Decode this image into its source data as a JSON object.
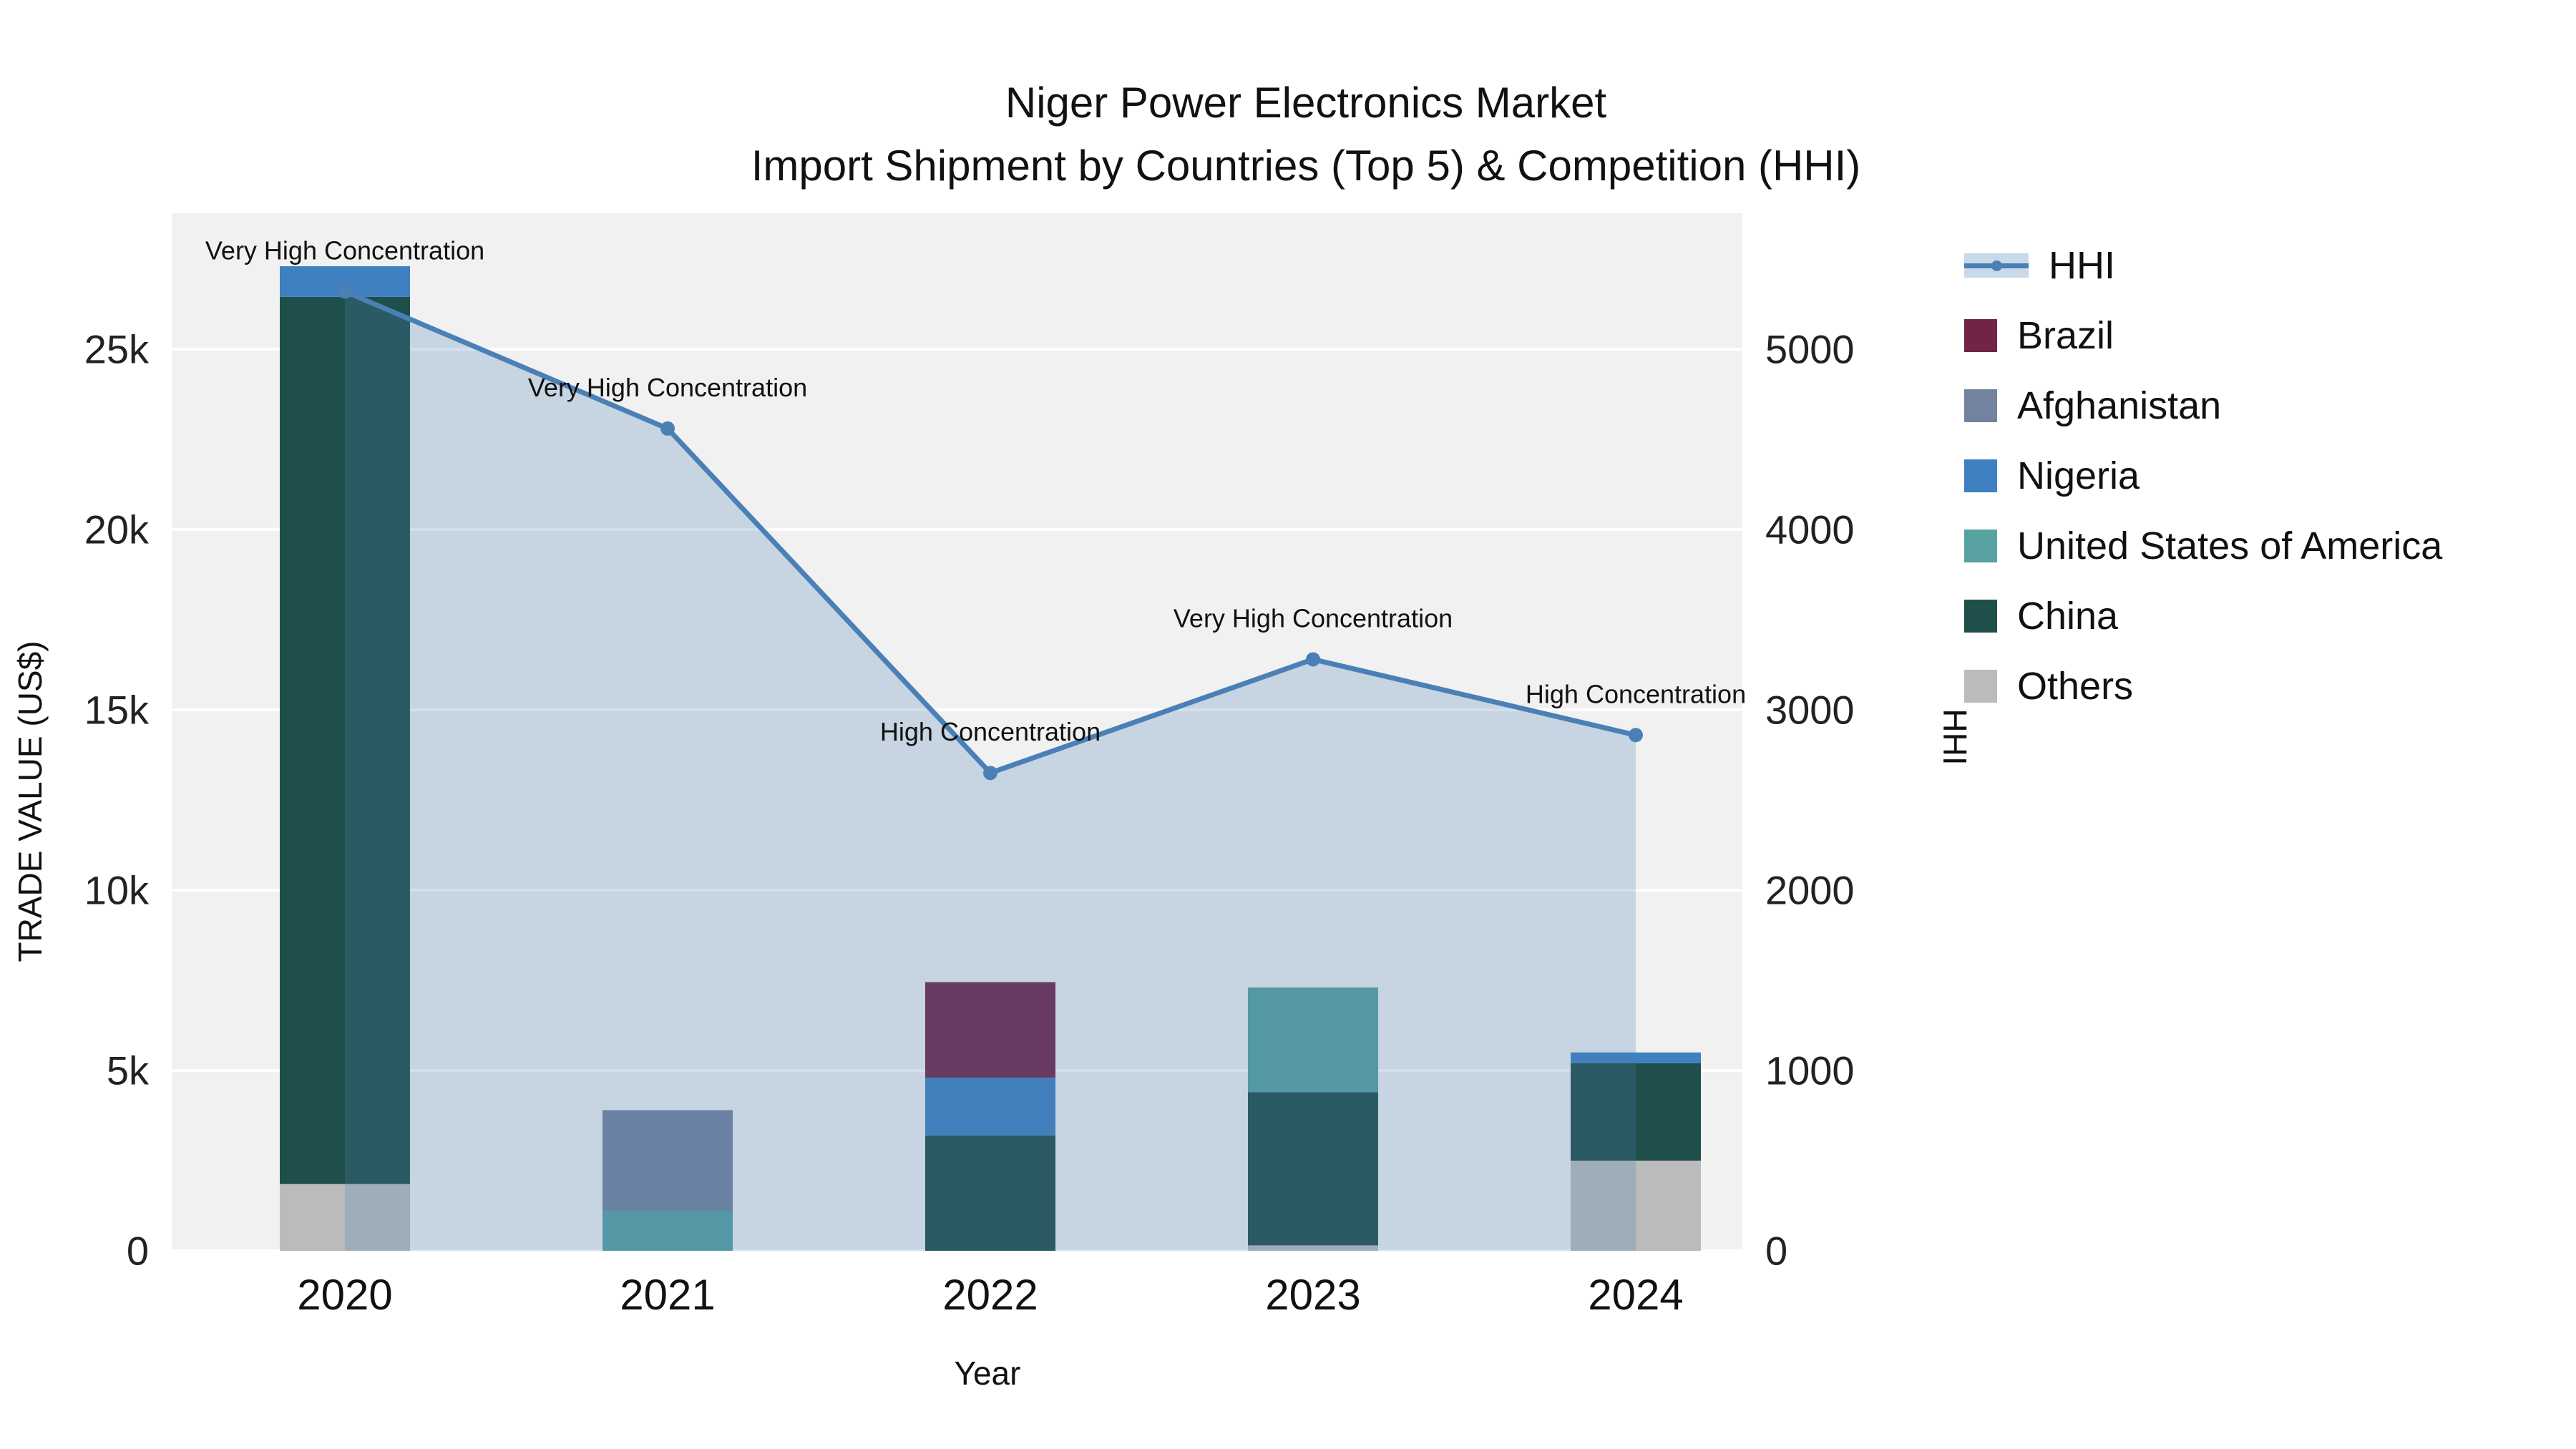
{
  "title": {
    "line1": "Niger Power Electronics Market",
    "line2": "Import Shipment by Countries (Top 5) & Competition (HHI)"
  },
  "legend": {
    "items": [
      {
        "label": "HHI",
        "type": "line",
        "color": "#4a80b5",
        "fill": "rgba(74,128,181,0.30)"
      },
      {
        "label": "Brazil",
        "type": "square",
        "color": "#722447"
      },
      {
        "label": "Afghanistan",
        "type": "square",
        "color": "#73829e"
      },
      {
        "label": "Nigeria",
        "type": "square",
        "color": "#3f80c0"
      },
      {
        "label": "United States of America",
        "type": "square",
        "color": "#58a1a1"
      },
      {
        "label": "China",
        "type": "square",
        "color": "#1f4f4b"
      },
      {
        "label": "Others",
        "type": "square",
        "color": "#bbbbbb"
      }
    ]
  },
  "chart_data": {
    "type": "bar",
    "subtype": "stacked-bar with HHI line on secondary axis and filled area",
    "title": "Niger Power Electronics Market Import Shipment by Countries (Top 5) & Competition (HHI)",
    "categories": [
      "2020",
      "2021",
      "2022",
      "2023",
      "2024"
    ],
    "x_title": "Year",
    "plot_bg": "#f1f1f2",
    "grid_color": "#ffffff",
    "legend_position": "right",
    "bar_series": [
      {
        "name": "Brazil",
        "color": "#722447",
        "values": [
          0,
          0,
          2650,
          0,
          0
        ]
      },
      {
        "name": "Afghanistan",
        "color": "#73829e",
        "values": [
          0,
          2800,
          0,
          0,
          0
        ]
      },
      {
        "name": "Nigeria",
        "color": "#3f80c0",
        "values": [
          850,
          0,
          1600,
          0,
          300
        ]
      },
      {
        "name": "United States of America",
        "color": "#58a1a1",
        "values": [
          0,
          1100,
          0,
          2900,
          0
        ]
      },
      {
        "name": "China",
        "color": "#1f4f4b",
        "values": [
          24600,
          0,
          3200,
          4250,
          2700
        ]
      },
      {
        "name": "Others",
        "color": "#bbbbbb",
        "values": [
          1850,
          0,
          0,
          150,
          2500
        ]
      }
    ],
    "stack_order": [
      "Others",
      "China",
      "United States of America",
      "Nigeria",
      "Afghanistan",
      "Brazil"
    ],
    "bar_totals": [
      27300,
      3900,
      7450,
      7300,
      5500
    ],
    "line_series": {
      "name": "HHI",
      "axis": "right",
      "color": "#4a80b5",
      "fill_color": "rgba(74,128,181,0.25)",
      "values": [
        5320,
        4560,
        2650,
        3280,
        2860
      ]
    },
    "annotations": [
      {
        "category": "2020",
        "text": "Very High Concentration"
      },
      {
        "category": "2021",
        "text": "Very High Concentration"
      },
      {
        "category": "2022",
        "text": "High Concentration"
      },
      {
        "category": "2023",
        "text": "Very High Concentration"
      },
      {
        "category": "2024",
        "text": "High Concentration"
      }
    ],
    "y_left": {
      "title": "TRADE VALUE (US$)",
      "tick_values": [
        0,
        5000,
        10000,
        15000,
        20000,
        25000
      ],
      "tick_labels": [
        "0",
        "5k",
        "10k",
        "15k",
        "20k",
        "25k"
      ],
      "range": [
        0,
        28750
      ]
    },
    "y_right": {
      "title": "HHI",
      "tick_values": [
        0,
        1000,
        2000,
        3000,
        4000,
        5000
      ],
      "tick_labels": [
        "0",
        "1000",
        "2000",
        "3000",
        "4000",
        "5000"
      ],
      "range": [
        0,
        5750
      ]
    }
  }
}
